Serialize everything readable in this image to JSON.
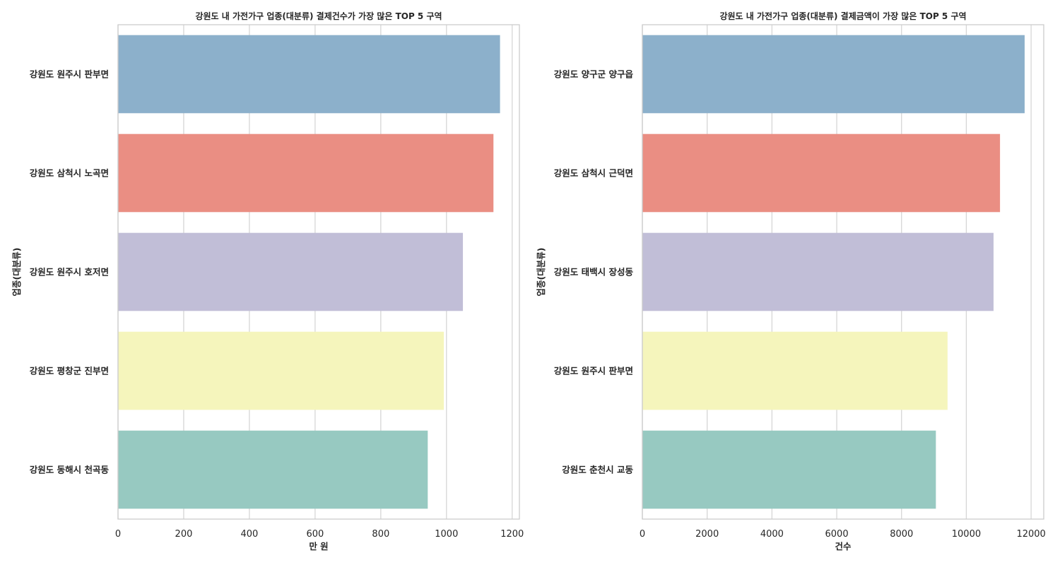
{
  "chart_data": [
    {
      "type": "bar",
      "orientation": "horizontal",
      "title": "강원도 내 가전가구 업종(대분류) 결제건수가 가장 많은 TOP 5 구역",
      "xlabel": "만 원",
      "ylabel": "업종(대분류)",
      "categories": [
        "강원도 원주시 판부면",
        "강원도 삼척시 노곡면",
        "강원도 원주시 호저면",
        "강원도 평창군 진부면",
        "강원도 동해시 천곡동"
      ],
      "values": [
        1163,
        1143,
        1050,
        992,
        943
      ],
      "colors": [
        "#8cb0cb",
        "#ea8e83",
        "#c1bed7",
        "#f5f5bc",
        "#97c9c1"
      ],
      "xlim": [
        0,
        1222
      ],
      "xticks": [
        "0",
        "200",
        "400",
        "600",
        "800",
        "1000",
        "1200"
      ],
      "grid": true,
      "legend": "none"
    },
    {
      "type": "bar",
      "orientation": "horizontal",
      "title": "강원도 내 가전가구 업종(대분류) 결제금액이 가장 많은 TOP 5 구역",
      "xlabel": "건수",
      "ylabel": "업종(대분류)",
      "categories": [
        "강원도 양구군 양구읍",
        "강원도 삼척시 근덕면",
        "강원도 태백시 장성동",
        "강원도 원주시 판부면",
        "강원도 춘천시 교동"
      ],
      "values": [
        11800,
        11040,
        10840,
        9420,
        9060
      ],
      "colors": [
        "#8cb0cb",
        "#ea8e83",
        "#c1bed7",
        "#f5f5bc",
        "#97c9c1"
      ],
      "xlim": [
        0,
        12390
      ],
      "xticks": [
        "0",
        "2000",
        "4000",
        "6000",
        "8000",
        "10000",
        "12000"
      ],
      "grid": true,
      "legend": "none"
    }
  ]
}
